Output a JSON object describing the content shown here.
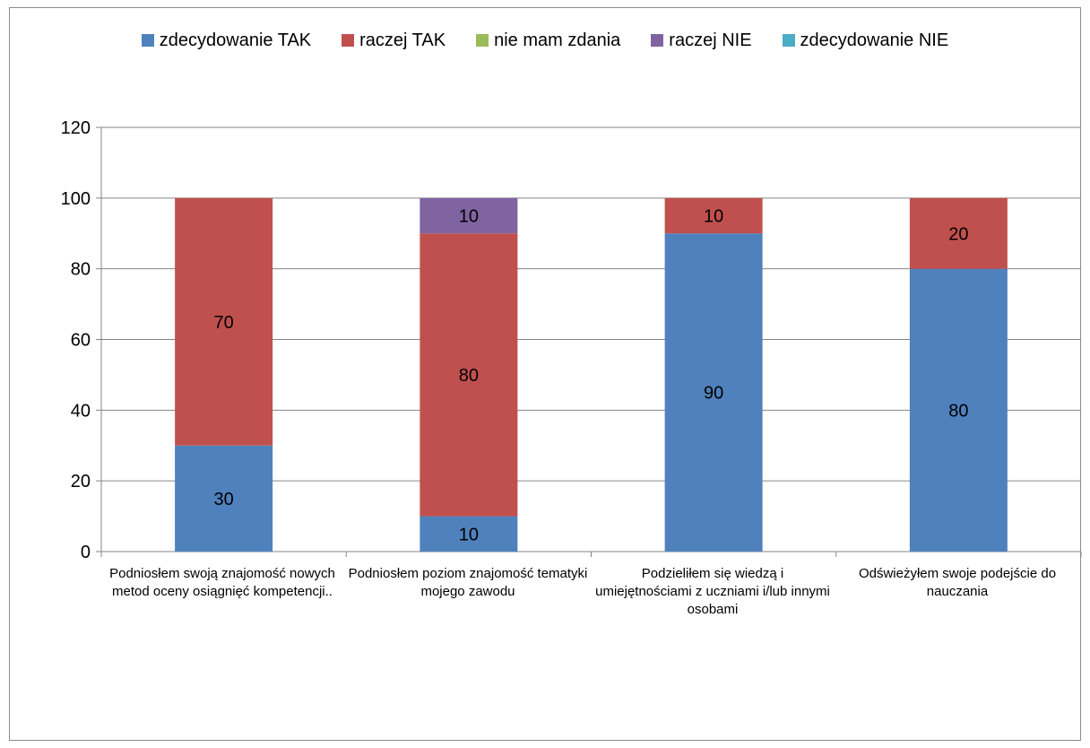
{
  "chart_data": {
    "type": "bar",
    "stacked": true,
    "title": "",
    "xlabel": "",
    "ylabel": "",
    "ylim": [
      0,
      120
    ],
    "yticks": [
      0,
      20,
      40,
      60,
      80,
      100,
      120
    ],
    "grid": true,
    "legend_position": "top",
    "categories": [
      "Podniosłem swoją znajomość nowych metod oceny osiągnięć kompetencji..",
      "Podniosłem poziom znajomość tematyki mojego zawodu",
      "Podzieliłem się wiedzą i umiejętnościami z uczniami i/lub innymi osobami",
      "Odświeżyłem swoje podejście do nauczania"
    ],
    "series": [
      {
        "name": "zdecydowanie TAK",
        "color": "#4f81bd",
        "values": [
          30,
          10,
          90,
          80
        ]
      },
      {
        "name": "raczej TAK",
        "color": "#c0504d",
        "values": [
          70,
          80,
          10,
          20
        ]
      },
      {
        "name": "nie mam zdania",
        "color": "#9bbb59",
        "values": [
          0,
          0,
          0,
          0
        ]
      },
      {
        "name": "raczej NIE",
        "color": "#8064a2",
        "values": [
          0,
          10,
          0,
          0
        ]
      },
      {
        "name": "zdecydowanie NIE",
        "color": "#4bacc6",
        "values": [
          0,
          0,
          0,
          0
        ]
      }
    ]
  }
}
